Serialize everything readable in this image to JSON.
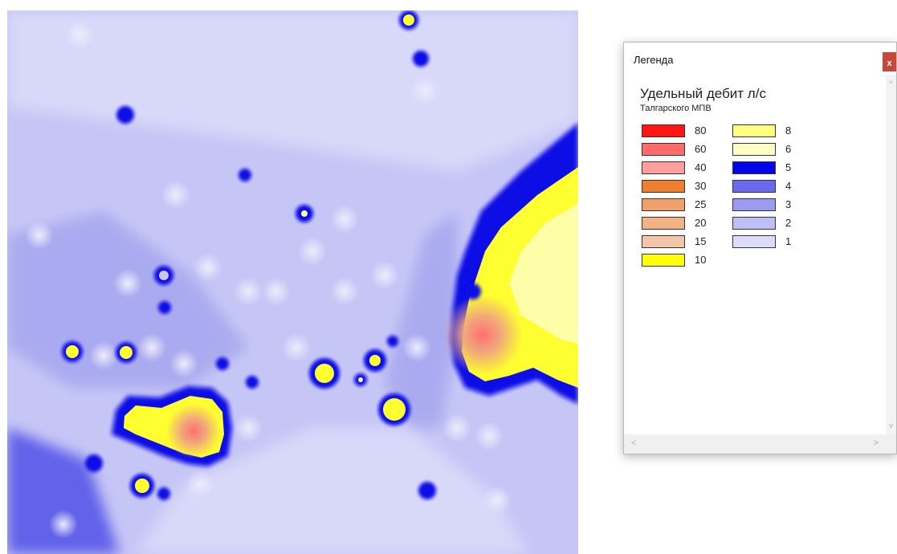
{
  "legend": {
    "window_title": "Легенда",
    "close_label": "x",
    "heading": "Удельный дебит л/с",
    "subheading": "Талгарского МПВ",
    "columns": [
      [
        {
          "label": "80",
          "color": "#ff1414"
        },
        {
          "label": "60",
          "color": "#ff6b6b"
        },
        {
          "label": "40",
          "color": "#ff9e9e"
        },
        {
          "label": "30",
          "color": "#ee7f2c"
        },
        {
          "label": "25",
          "color": "#f0a06c"
        },
        {
          "label": "20",
          "color": "#f2b487"
        },
        {
          "label": "15",
          "color": "#f4c5a8"
        },
        {
          "label": "10",
          "color": "#fefe05"
        }
      ],
      [
        {
          "label": "8",
          "color": "#fefe82"
        },
        {
          "label": "6",
          "color": "#fefec4"
        },
        {
          "label": "5",
          "color": "#0505ea"
        },
        {
          "label": "4",
          "color": "#6a6aee"
        },
        {
          "label": "3",
          "color": "#9b9bf0"
        },
        {
          "label": "2",
          "color": "#bfbff5"
        },
        {
          "label": "1",
          "color": "#dcdcf8"
        }
      ]
    ],
    "scroll_up_glyph": "^",
    "scroll_down_glyph": "v",
    "scroll_left_glyph": "<",
    "scroll_right_glyph": ">"
  },
  "map": {
    "colors": {
      "background": "#c6c6f6",
      "light": "#d8d8f9",
      "mid": "#aaaaf0",
      "dark": "#6262ea",
      "edge": "#0a0ae6",
      "yellow": "#fefe30",
      "pale_yellow": "#fefea8",
      "orange": "#f0a87c",
      "red": "#ff6f6f"
    }
  }
}
